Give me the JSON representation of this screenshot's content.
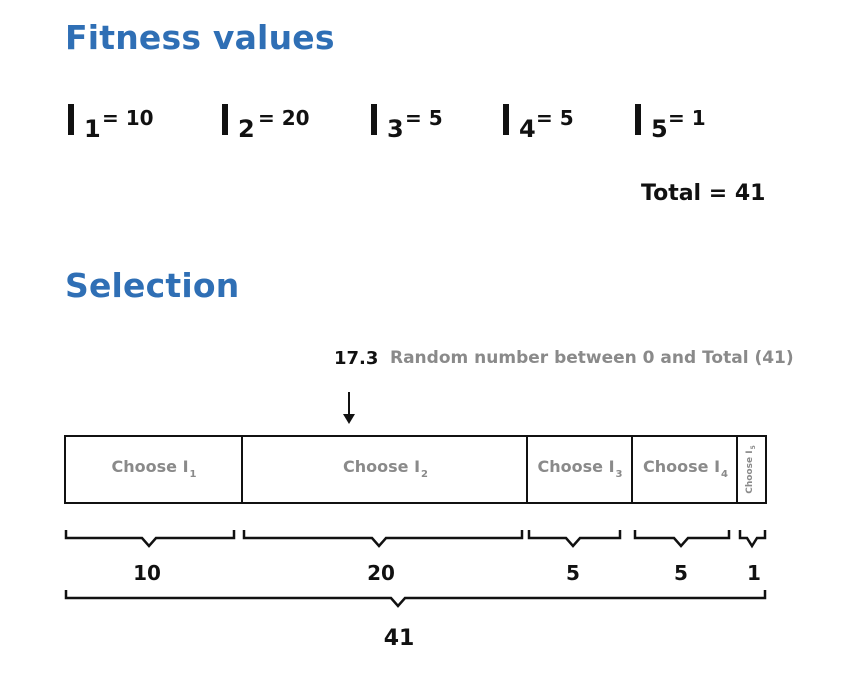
{
  "fitness": {
    "heading": "Fitness values",
    "individual_symbol": "I",
    "items": [
      {
        "index": "1",
        "value_text": "= 10",
        "value": 10
      },
      {
        "index": "2",
        "value_text": "= 20",
        "value": 20
      },
      {
        "index": "3",
        "value_text": "= 5",
        "value": 5
      },
      {
        "index": "4",
        "value_text": "= 5",
        "value": 5
      },
      {
        "index": "5",
        "value_text": "= 1",
        "value": 1
      }
    ],
    "total_text": "Total = 41"
  },
  "selection": {
    "heading": "Selection",
    "random_value": "17.3",
    "random_note": "Random number between 0 and Total (41)",
    "segments": [
      {
        "label": "Choose I",
        "sub": "1",
        "width": "10"
      },
      {
        "label": "Choose I",
        "sub": "2",
        "width": "20"
      },
      {
        "label": "Choose I",
        "sub": "3",
        "width": "5"
      },
      {
        "label": "Choose I",
        "sub": "4",
        "width": "5"
      },
      {
        "label": "Choose I",
        "sub": "5",
        "width": "1"
      }
    ],
    "total_width": "41"
  }
}
